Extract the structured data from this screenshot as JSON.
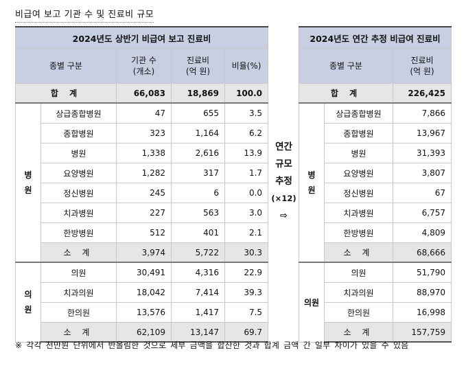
{
  "doc_title": "비급여 보고 기관 수 및 진료비 규모",
  "left": {
    "title": "2024년도 상반기 비급여 보고 진료비",
    "headers": {
      "category": "종별 구분",
      "count": [
        "기관 수",
        "(개소)"
      ],
      "cost": [
        "진료비",
        "(억 원)"
      ],
      "ratio": "비율(%)"
    },
    "total": {
      "label": "합 계",
      "count": "66,083",
      "cost": "18,869",
      "ratio": "100.0"
    },
    "groups": [
      {
        "label": [
          "병",
          "원"
        ],
        "rows": [
          {
            "name": "상급종합병원",
            "count": "47",
            "cost": "655",
            "ratio": "3.5"
          },
          {
            "name": "종합병원",
            "count": "323",
            "cost": "1,164",
            "ratio": "6.2"
          },
          {
            "name": "병원",
            "count": "1,338",
            "cost": "2,616",
            "ratio": "13.9"
          },
          {
            "name": "요양병원",
            "count": "1,282",
            "cost": "317",
            "ratio": "1.7"
          },
          {
            "name": "정신병원",
            "count": "245",
            "cost": "6",
            "ratio": "0.0"
          },
          {
            "name": "치과병원",
            "count": "227",
            "cost": "563",
            "ratio": "3.0"
          },
          {
            "name": "한방병원",
            "count": "512",
            "cost": "401",
            "ratio": "2.1"
          }
        ],
        "subtotal": {
          "label": "소 계",
          "count": "3,974",
          "cost": "5,722",
          "ratio": "30.3"
        }
      },
      {
        "label": [
          "의",
          "원"
        ],
        "rows": [
          {
            "name": "의원",
            "count": "30,491",
            "cost": "4,316",
            "ratio": "22.9"
          },
          {
            "name": "치과의원",
            "count": "18,042",
            "cost": "7,414",
            "ratio": "39.3"
          },
          {
            "name": "한의원",
            "count": "13,576",
            "cost": "1,417",
            "ratio": "7.5"
          }
        ],
        "subtotal": {
          "label": "소 계",
          "count": "62,109",
          "cost": "13,147",
          "ratio": "69.7"
        }
      }
    ]
  },
  "middle": {
    "lines": [
      "연간",
      "규모",
      "추정"
    ],
    "multiplier": "(×12)",
    "arrow": "⇨"
  },
  "right": {
    "title": "2024년도 연간 추정 비급여 진료비",
    "headers": {
      "category": "종별 구분",
      "cost": [
        "진료비",
        "(억 원)"
      ]
    },
    "total": {
      "label": "합 계",
      "cost": "226,425"
    },
    "groups": [
      {
        "label": [
          "병",
          "원"
        ],
        "rows": [
          {
            "name": "상급종합병원",
            "cost": "7,866"
          },
          {
            "name": "종합병원",
            "cost": "13,967"
          },
          {
            "name": "병원",
            "cost": "31,393"
          },
          {
            "name": "요양병원",
            "cost": "3,807"
          },
          {
            "name": "정신병원",
            "cost": "67"
          },
          {
            "name": "치과병원",
            "cost": "6,757"
          },
          {
            "name": "한방병원",
            "cost": "4,809"
          }
        ],
        "subtotal": {
          "label": "소 계",
          "cost": "68,666"
        }
      },
      {
        "label": "의원",
        "rows": [
          {
            "name": "의원",
            "cost": "51,790"
          },
          {
            "name": "치과의원",
            "cost": "88,970"
          },
          {
            "name": "한의원",
            "cost": "16,998"
          }
        ],
        "subtotal": {
          "label": "소 계",
          "cost": "157,759"
        }
      }
    ]
  },
  "footnote": "※ 각각 천만원 단위에서 반올림한 것으로 세부 금액을 합산한 것과 합계 금액 간 일부 차이가 있을 수 있음"
}
